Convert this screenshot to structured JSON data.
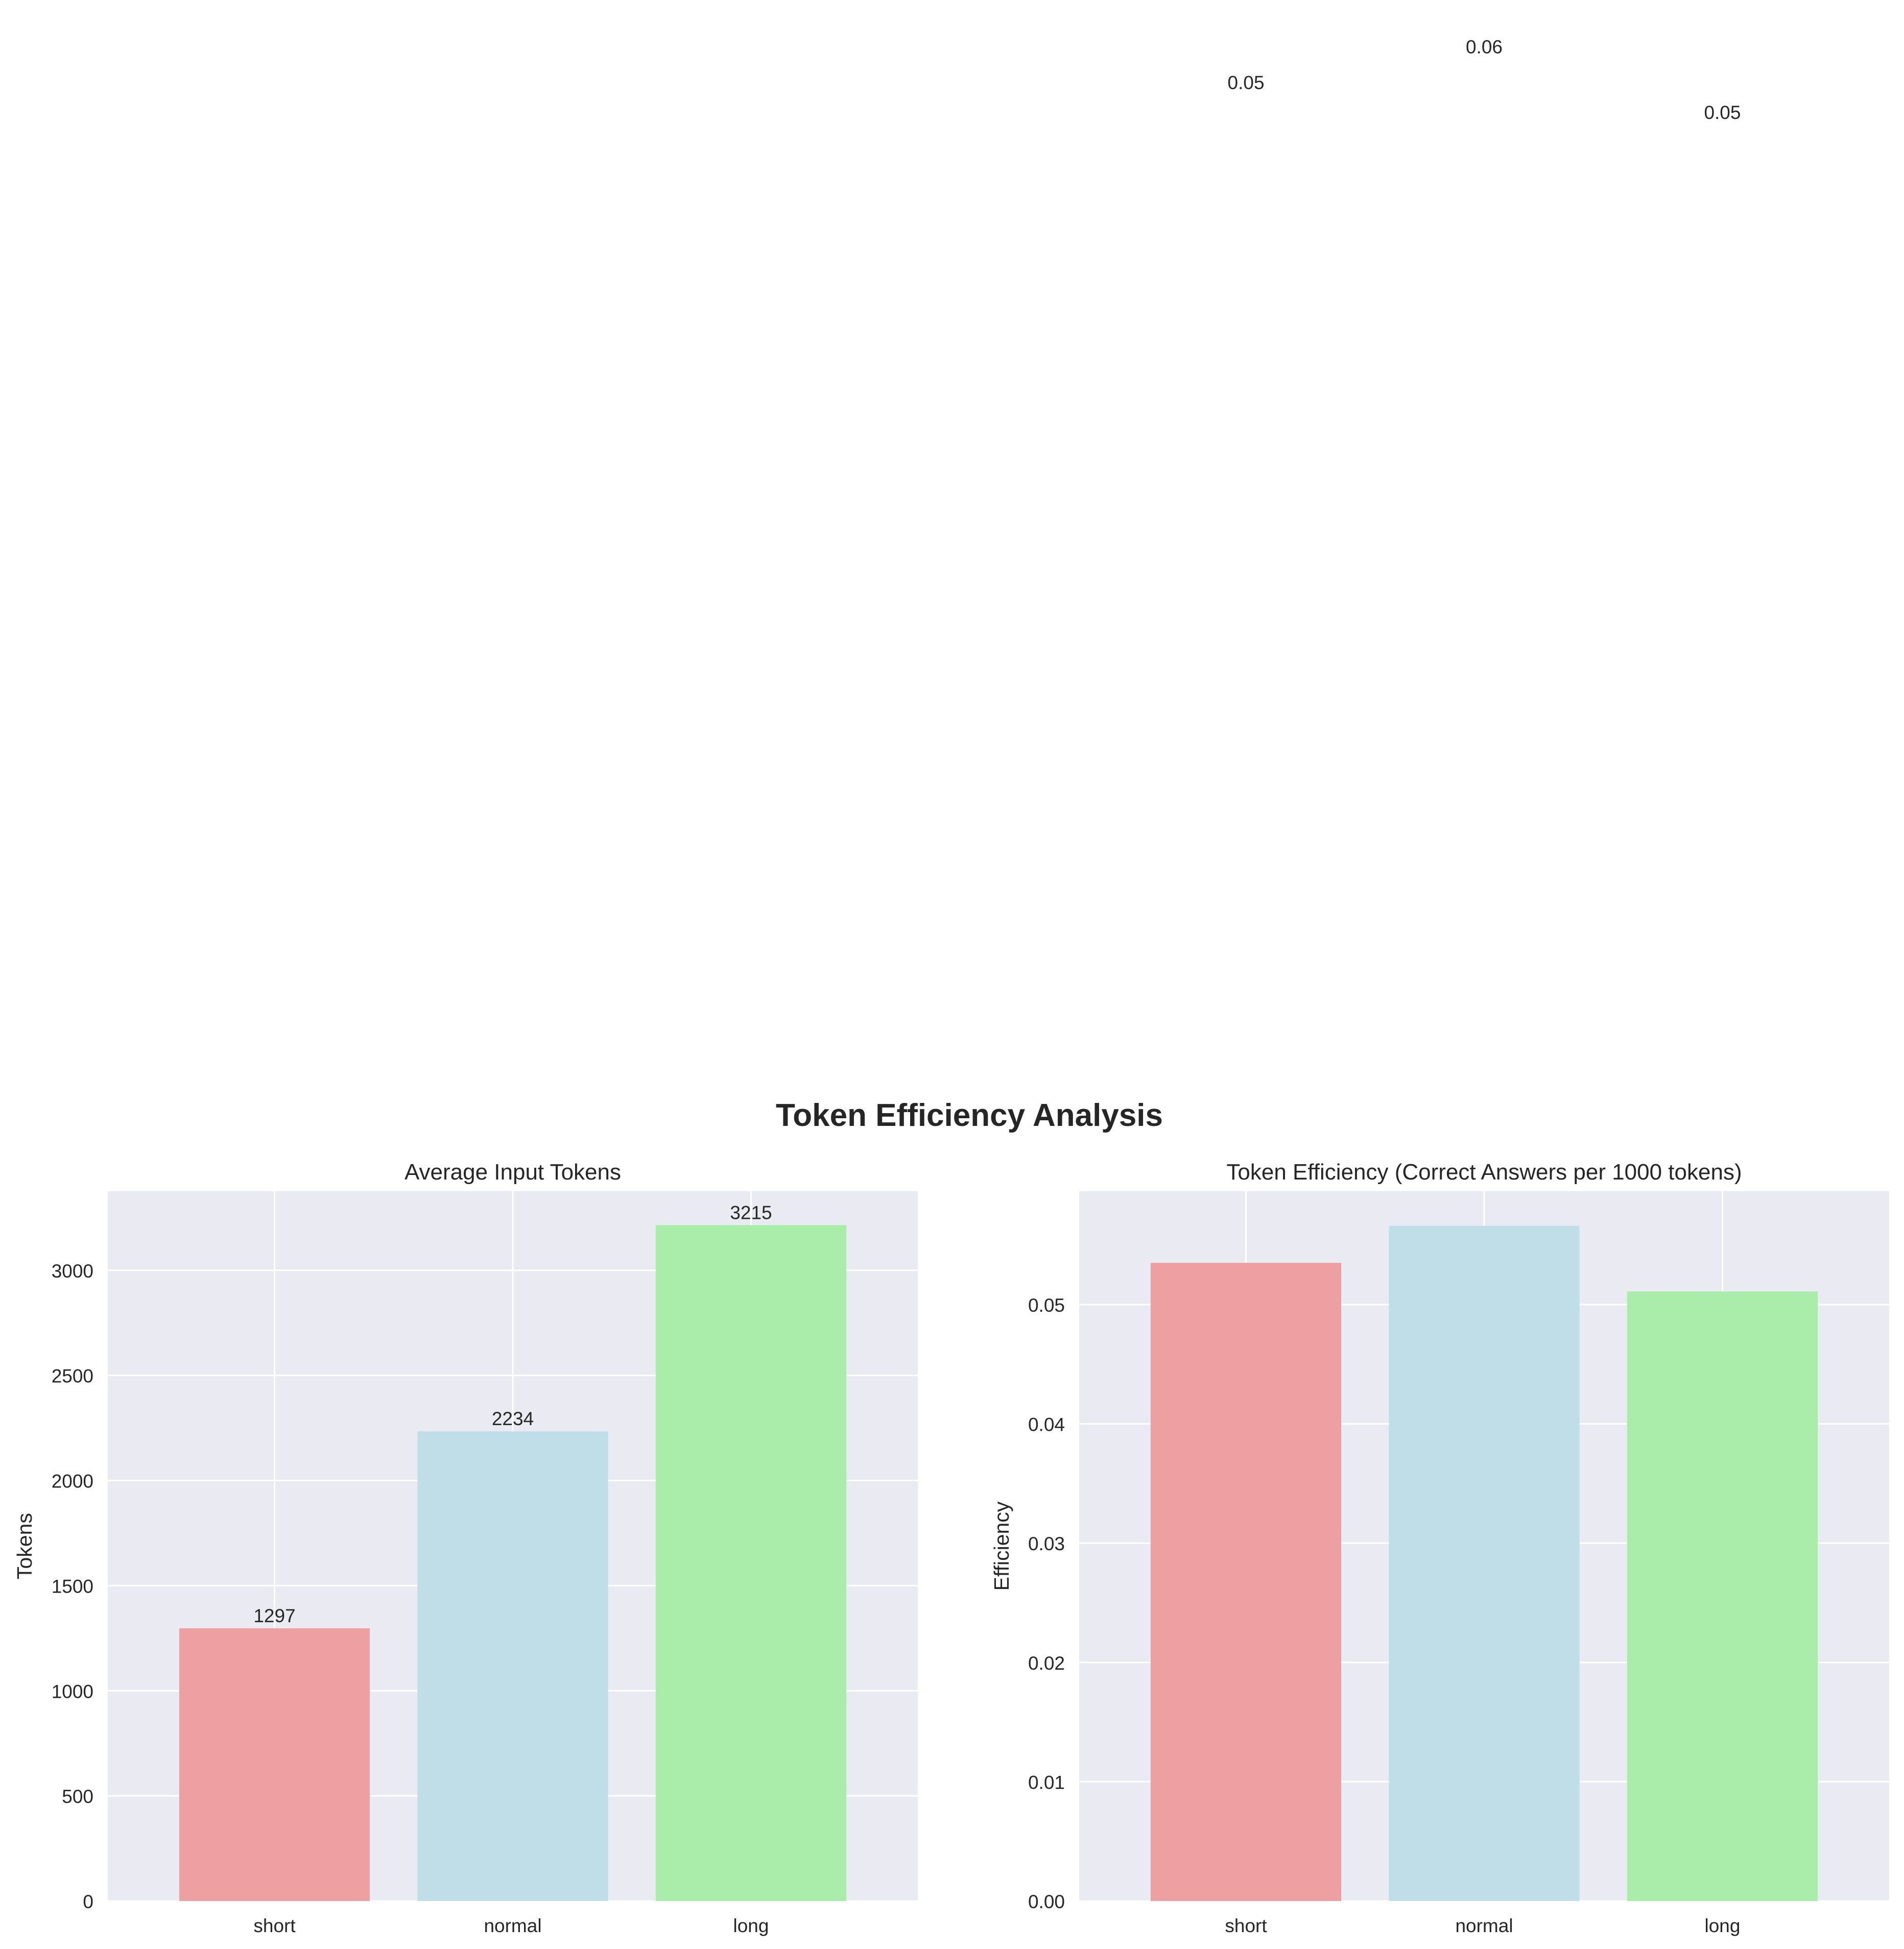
{
  "figure": {
    "suptitle": "Token Efficiency Analysis"
  },
  "colors": {
    "plot_bg": "#eaeaf2",
    "grid": "#ffffff",
    "bars": [
      "#ee9fa2",
      "#c0dee8",
      "#aaecaa"
    ],
    "text": "#262626"
  },
  "chart_data": [
    {
      "type": "bar",
      "title": "Average Input Tokens",
      "xlabel": "",
      "ylabel": "Tokens",
      "categories": [
        "short",
        "normal",
        "long"
      ],
      "values": [
        1297,
        2234,
        3215
      ],
      "value_labels": [
        "1297",
        "2234",
        "3215"
      ],
      "ylim": [
        0,
        3376
      ],
      "yticks": [
        0,
        500,
        1000,
        1500,
        2000,
        2500,
        3000
      ],
      "ytick_labels": [
        "0",
        "500",
        "1000",
        "1500",
        "2000",
        "2500",
        "3000"
      ],
      "grid": true
    },
    {
      "type": "bar",
      "title": "Token Efficiency (Correct Answers per 1000 tokens)",
      "xlabel": "",
      "ylabel": "Efficiency",
      "categories": [
        "short",
        "normal",
        "long"
      ],
      "values": [
        0.0535,
        0.0566,
        0.0511
      ],
      "value_labels": [
        "0.05",
        "0.06",
        "0.05"
      ],
      "value_label_positions": [
        0.1525,
        0.1555,
        0.15
      ],
      "ylim": [
        0,
        0.0595
      ],
      "yticks": [
        0,
        0.01,
        0.02,
        0.03,
        0.04,
        0.05
      ],
      "ytick_labels": [
        "0.00",
        "0.01",
        "0.02",
        "0.03",
        "0.04",
        "0.05"
      ],
      "grid": true
    }
  ]
}
